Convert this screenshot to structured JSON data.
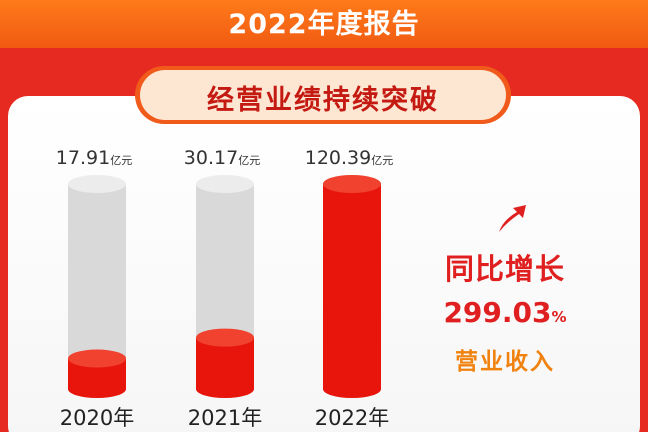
{
  "header": {
    "title": "2022年度报告"
  },
  "section": {
    "title": "经营业绩持续突破"
  },
  "chart_data": {
    "type": "bar",
    "categories": [
      "2020年",
      "2021年",
      "2022年"
    ],
    "values": [
      17.91,
      30.17,
      120.39
    ],
    "value_labels": [
      "17.91",
      "30.17",
      "120.39"
    ],
    "unit": "亿元",
    "ylim": [
      0,
      120.39
    ],
    "colors": {
      "fill": "#e8150c",
      "track": "#d9d9d9"
    }
  },
  "growth": {
    "label": "同比增长",
    "value": "299.03",
    "unit": "%",
    "metric": "营业收入",
    "colors": {
      "label": "#e02020",
      "metric": "#f0820f"
    }
  }
}
